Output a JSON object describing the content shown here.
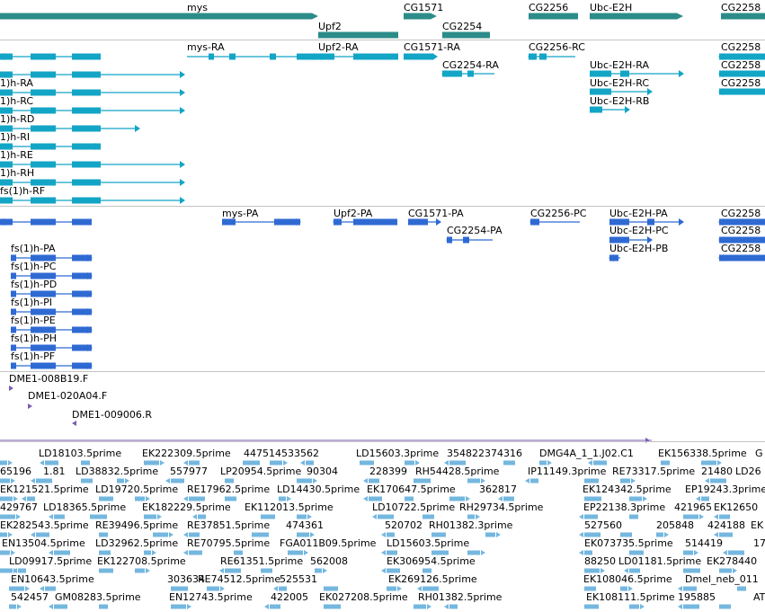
{
  "colors": {
    "gene": "#2c8c89",
    "annotation_transcript": "#13a5c6",
    "prediction_transcript": "#2f6ad3",
    "clone_end": "#7a5bb5",
    "est": "#74b7df",
    "separator": "#c4c4c4"
  },
  "gene_track": {
    "labels": [
      "mys",
      "Upf2",
      "CG1571",
      "CG2254",
      "CG2256",
      "Ubc-E2H",
      "CG2258"
    ]
  },
  "annotation_track": {
    "labels": [
      "mys-RA",
      "Upf2-RA",
      "CG1571-RA",
      "CG2256-RC",
      "CG2258",
      "CG2254-RA",
      "Ubc-E2H-RA",
      "CG2258",
      "1)h-RA",
      "Ubc-E2H-RC",
      "CG2258",
      "1)h-RC",
      "Ubc-E2H-RB",
      "1)h-RD",
      "1)h-RI",
      "1)h-RE",
      "1)h-RH",
      "fs(1)h-RF"
    ]
  },
  "prediction_track": {
    "labels": [
      "mys-PA",
      "Upf2-PA",
      "CG1571-PA",
      "CG2256-PC",
      "Ubc-E2H-PA",
      "CG2258",
      "CG2254-PA",
      "Ubc-E2H-PC",
      "CG2258",
      "Ubc-E2H-PB",
      "CG2258",
      "fs(1)h-PA",
      "fs(1)h-PC",
      "fs(1)h-PD",
      "fs(1)h-PI",
      "fs(1)h-PE",
      "fs(1)h-PH",
      "fs(1)h-PF"
    ]
  },
  "clone_track": {
    "labels": [
      "DME1-008B19.F",
      "DME1-020A04.F",
      "DME1-009006.R"
    ]
  },
  "est_track": {
    "labels": [
      "LD18103.5prime",
      "EK222309.5prime",
      "447514533562",
      "LD15603.3prime",
      "354822374316",
      "DMG4A_1_1.J02.C1",
      "EK156338.5prime",
      "G",
      "65196",
      "1.81",
      "LD38832.5prime",
      "557977",
      "LP20954.5prime",
      "90304",
      "228399",
      "RH54428.5prime",
      "IP11149.3prime",
      "RE73317.5prime",
      "21480",
      "LD26",
      "EK121521.5prime",
      "LD19720.5prime",
      "RE17962.5prime",
      "LD14430.5prime",
      "EK170647.5prime",
      "362817",
      "EK124342.5prime",
      "EP19243.3prime",
      "429767",
      "LD18365.5prime",
      "EK182229.5prime",
      "EK112013.5prime",
      "LD10722.5prime",
      "RH29734.5prime",
      "EP22138.3prime",
      "421965",
      "EK12650",
      "EK282543.5prime",
      "RE39496.5prime",
      "RE37851.5prime",
      "474361",
      "520702",
      "RH01382.3prime",
      "527560",
      "205848",
      "424188",
      "EK",
      "EN13504.5prime",
      "LD32962.5prime",
      "RE70795.5prime",
      "FGA011B09.5prime",
      "LD15603.5prime",
      "EK073735.5prime",
      "514419",
      "17",
      "LD09917.5prime",
      "EK122708.5prime",
      "RE61351.5prime",
      "562008",
      "EK306954.5prime",
      "88250",
      "LD01181.5prime",
      "EK278440",
      "EN10643.5prime",
      "303634",
      "RE74512.5prime",
      "525531",
      "EK269126.5prime",
      "EK108046.5prime",
      "Dmel_neb_011",
      "542457",
      "GM08283.5prime",
      "EN12743.5prime",
      "422005",
      "EK027208.5prime",
      "RH01382.5prime",
      "EK108111.5prime",
      "195885",
      "AT"
    ]
  }
}
